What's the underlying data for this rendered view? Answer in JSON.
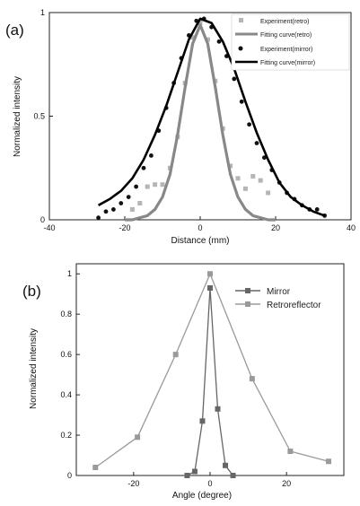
{
  "chart_data": [
    {
      "type": "scatter",
      "panel_label": "(a)",
      "xlabel": "Distance (mm)",
      "ylabel": "Normalized intensity",
      "xlim": [
        -40,
        40
      ],
      "ylim": [
        0,
        1
      ],
      "xticks": [
        "-40",
        "-20",
        "0",
        "20",
        "40"
      ],
      "yticks": [
        "0",
        "0.5",
        "1"
      ],
      "legend_position": "top-right",
      "series": [
        {
          "name": "Experiment(retro)",
          "kind": "points",
          "marker": "square",
          "color": "#b5b5b5",
          "x": [
            -18,
            -16,
            -14,
            -12,
            -10,
            -8,
            -6,
            -4,
            -2,
            0,
            2,
            4,
            6,
            8,
            10,
            12,
            14,
            16,
            18
          ],
          "y": [
            0.05,
            0.08,
            0.16,
            0.17,
            0.17,
            0.25,
            0.4,
            0.66,
            0.88,
            0.95,
            0.87,
            0.67,
            0.44,
            0.26,
            0.2,
            0.15,
            0.21,
            0.19,
            0.13
          ]
        },
        {
          "name": "Fitting curve(retro)",
          "kind": "line",
          "color": "#888888",
          "x": [
            -20,
            -18,
            -16,
            -14,
            -12,
            -10,
            -8,
            -6,
            -4,
            -2,
            0,
            2,
            4,
            6,
            8,
            10,
            12,
            14,
            16,
            18,
            20
          ],
          "y": [
            0.0,
            0.0,
            0.01,
            0.02,
            0.05,
            0.11,
            0.22,
            0.41,
            0.64,
            0.85,
            0.94,
            0.85,
            0.64,
            0.41,
            0.22,
            0.11,
            0.05,
            0.02,
            0.01,
            0.0,
            0.0
          ]
        },
        {
          "name": "Experiment(mirror)",
          "kind": "points",
          "marker": "circle",
          "color": "#111111",
          "x": [
            -27,
            -25,
            -23,
            -21,
            -19,
            -17,
            -15,
            -13,
            -11,
            -9,
            -7,
            -5,
            -3,
            -1,
            1,
            3,
            5,
            7,
            9,
            11,
            13,
            15,
            17,
            19,
            21,
            23,
            25,
            27,
            29,
            31,
            33
          ],
          "y": [
            0.01,
            0.04,
            0.05,
            0.08,
            0.11,
            0.16,
            0.25,
            0.31,
            0.43,
            0.54,
            0.66,
            0.78,
            0.89,
            0.96,
            0.97,
            0.93,
            0.86,
            0.79,
            0.68,
            0.57,
            0.46,
            0.37,
            0.3,
            0.24,
            0.18,
            0.13,
            0.1,
            0.07,
            0.05,
            0.05,
            0.02
          ]
        },
        {
          "name": "Fitting curve(mirror)",
          "kind": "line",
          "color": "#000000",
          "x": [
            -27,
            -24,
            -21,
            -18,
            -15,
            -12,
            -9,
            -6,
            -3,
            0,
            3,
            6,
            9,
            12,
            15,
            18,
            21,
            24,
            27,
            30,
            33
          ],
          "y": [
            0.07,
            0.1,
            0.14,
            0.2,
            0.29,
            0.41,
            0.55,
            0.71,
            0.87,
            0.97,
            0.95,
            0.86,
            0.73,
            0.57,
            0.42,
            0.29,
            0.18,
            0.11,
            0.07,
            0.04,
            0.02
          ]
        }
      ]
    },
    {
      "type": "line",
      "panel_label": "(b)",
      "xlabel": "Angle (degree)",
      "ylabel": "Normalized intensity",
      "xlim": [
        -35,
        35
      ],
      "ylim": [
        0,
        1.05
      ],
      "xticks": [
        "-20",
        "0",
        "20"
      ],
      "yticks": [
        "0",
        "0.2",
        "0.4",
        "0.6",
        "0.8",
        "1"
      ],
      "legend_position": "top-right",
      "series": [
        {
          "name": "Mirror",
          "marker": "square",
          "color": "#666666",
          "x": [
            -6,
            -4,
            -2,
            0,
            2,
            4,
            6
          ],
          "y": [
            0.0,
            0.02,
            0.27,
            0.93,
            0.33,
            0.05,
            0.0
          ]
        },
        {
          "name": "Retroreflector",
          "marker": "square",
          "color": "#9a9a9a",
          "x": [
            -30,
            -19,
            -9,
            0,
            11,
            21,
            31
          ],
          "y": [
            0.04,
            0.19,
            0.6,
            1.0,
            0.48,
            0.12,
            0.07
          ]
        }
      ]
    }
  ]
}
